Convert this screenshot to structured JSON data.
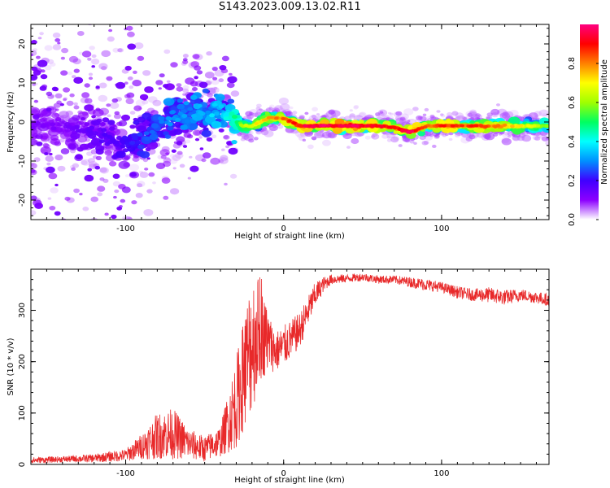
{
  "title": "S143.2023.009.13.02.R11",
  "chart_data": [
    {
      "type": "heatmap",
      "xlabel": "Height of straight line (km)",
      "ylabel": "Frequency (Hz)",
      "xlim": [
        -160,
        168
      ],
      "ylim": [
        -25,
        25
      ],
      "xticks": [
        -100,
        0,
        100
      ],
      "yticks": [
        -20,
        -10,
        0,
        10,
        20
      ],
      "grid": false,
      "colorbar": {
        "label": "Normalized spectral amplitude",
        "range": [
          0,
          1
        ],
        "ticks": [
          "0.0",
          "0.2",
          "0.4",
          "0.6",
          "0.8"
        ],
        "colors": [
          "#ffffff",
          "#8c00ff",
          "#3f00ff",
          "#0090ff",
          "#00ffff",
          "#00ff60",
          "#a0ff00",
          "#ffff00",
          "#ff8000",
          "#ff0000",
          "#ff0080"
        ]
      },
      "ridge": {
        "x": [
          -160,
          -140,
          -120,
          -100,
          -90,
          -80,
          -70,
          -60,
          -50,
          -40,
          -30,
          -25,
          -20,
          -10,
          0,
          10,
          20,
          40,
          60,
          70,
          80,
          85,
          90,
          100,
          120,
          140,
          168
        ],
        "freq_hz": [
          0,
          -1,
          -2,
          -6,
          -4,
          -1,
          1,
          2,
          2.5,
          3,
          0,
          -1,
          -1,
          1,
          1,
          -1,
          -1,
          -1,
          -1,
          -1.5,
          -2.5,
          -2,
          -1,
          -1,
          -1,
          -1,
          -1
        ],
        "peak_amplitude": [
          0.15,
          0.15,
          0.2,
          0.25,
          0.3,
          0.35,
          0.4,
          0.4,
          0.45,
          0.45,
          0.6,
          0.65,
          0.7,
          0.8,
          0.85,
          0.95,
          1.0,
          1.0,
          0.95,
          0.9,
          1.0,
          0.9,
          0.85,
          0.9,
          0.9,
          0.8,
          0.6
        ]
      }
    },
    {
      "type": "line",
      "xlabel": "Height of straight line (km)",
      "ylabel": "SNR (10 * v/v)",
      "xlim": [
        -160,
        168
      ],
      "ylim": [
        0,
        380
      ],
      "xticks": [
        -100,
        0,
        100
      ],
      "yticks": [
        0,
        100,
        200,
        300
      ],
      "grid": false,
      "color": "#e8292a",
      "series": [
        {
          "x": [
            -160,
            -140,
            -120,
            -100,
            -90,
            -80,
            -70,
            -60,
            -50,
            -40,
            -30,
            -25,
            -20,
            -15,
            -10,
            -5,
            0,
            10,
            20,
            25,
            30,
            40,
            50,
            60,
            70,
            80,
            90,
            100,
            110,
            120,
            130,
            140,
            150,
            160,
            168
          ],
          "y": [
            8,
            10,
            12,
            18,
            35,
            55,
            60,
            40,
            30,
            45,
            120,
            180,
            240,
            260,
            240,
            220,
            230,
            260,
            330,
            350,
            360,
            362,
            365,
            360,
            360,
            355,
            350,
            345,
            335,
            330,
            330,
            325,
            330,
            325,
            320
          ],
          "noise_amplitude": [
            6,
            6,
            8,
            12,
            25,
            45,
            50,
            30,
            25,
            30,
            90,
            110,
            140,
            100,
            60,
            40,
            40,
            35,
            25,
            15,
            10,
            8,
            8,
            8,
            8,
            10,
            12,
            10,
            12,
            12,
            15,
            15,
            12,
            12,
            12
          ]
        }
      ]
    }
  ]
}
